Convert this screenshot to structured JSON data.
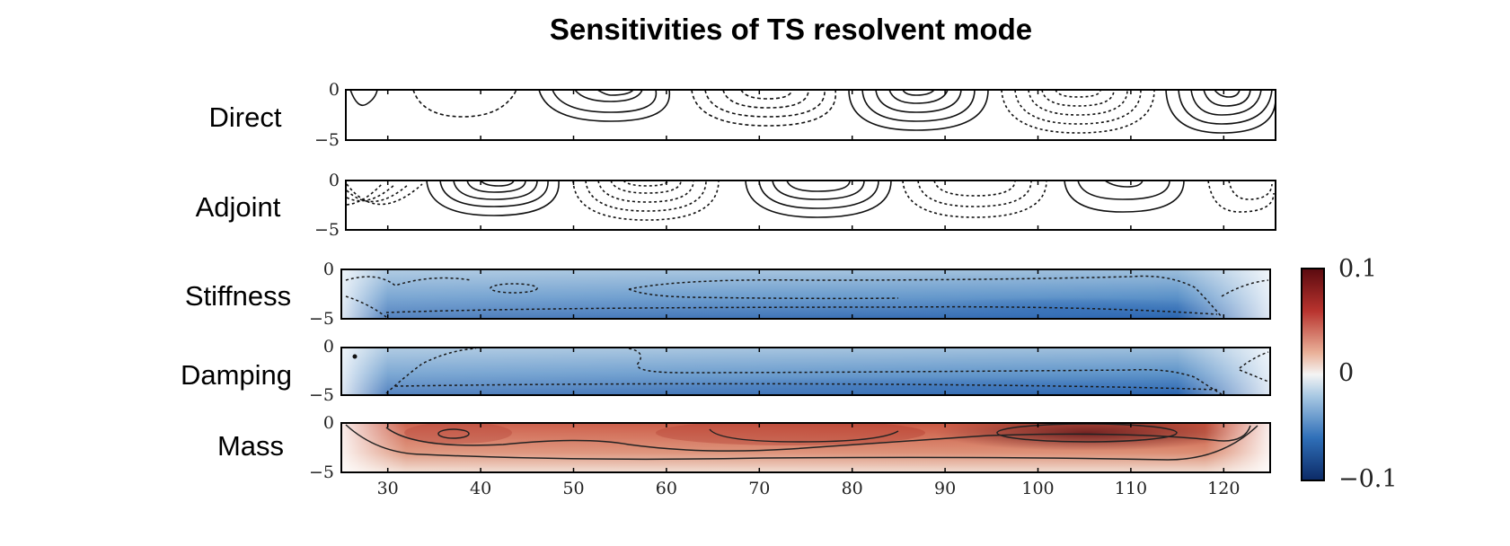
{
  "chart_data": {
    "type": "heatmap",
    "title": "Sensitivities of TS resolvent mode",
    "x_ticks": [
      "30",
      "40",
      "50",
      "60",
      "70",
      "80",
      "90",
      "100",
      "110",
      "120"
    ],
    "xlim": [
      25,
      125
    ],
    "colorbar": {
      "range": [
        -0.1,
        0.1
      ],
      "ticks": [
        "0.1",
        "0",
        "−0.1"
      ],
      "colormap": "diverging blue-white-red"
    },
    "panels": [
      {
        "name": "Direct",
        "y_ticks": [
          "0",
          "−5"
        ],
        "kind": "contour lines"
      },
      {
        "name": "Adjoint",
        "y_ticks": [
          "0",
          "−5"
        ],
        "kind": "contour lines"
      },
      {
        "name": "Stiffness",
        "y_ticks": [
          "0",
          "−5"
        ],
        "kind": "filled",
        "sign": "negative"
      },
      {
        "name": "Damping",
        "y_ticks": [
          "0",
          "−5"
        ],
        "kind": "filled",
        "sign": "negative"
      },
      {
        "name": "Mass",
        "y_ticks": [
          "0",
          "−5"
        ],
        "kind": "filled",
        "sign": "positive"
      }
    ]
  },
  "colors": {
    "negative_dark": "#1f56a8",
    "negative_light": "#8fb5d6",
    "positive_dark": "#4a0b10",
    "positive_light": "#e8c0ad",
    "neutral": "#f2f2f2"
  }
}
